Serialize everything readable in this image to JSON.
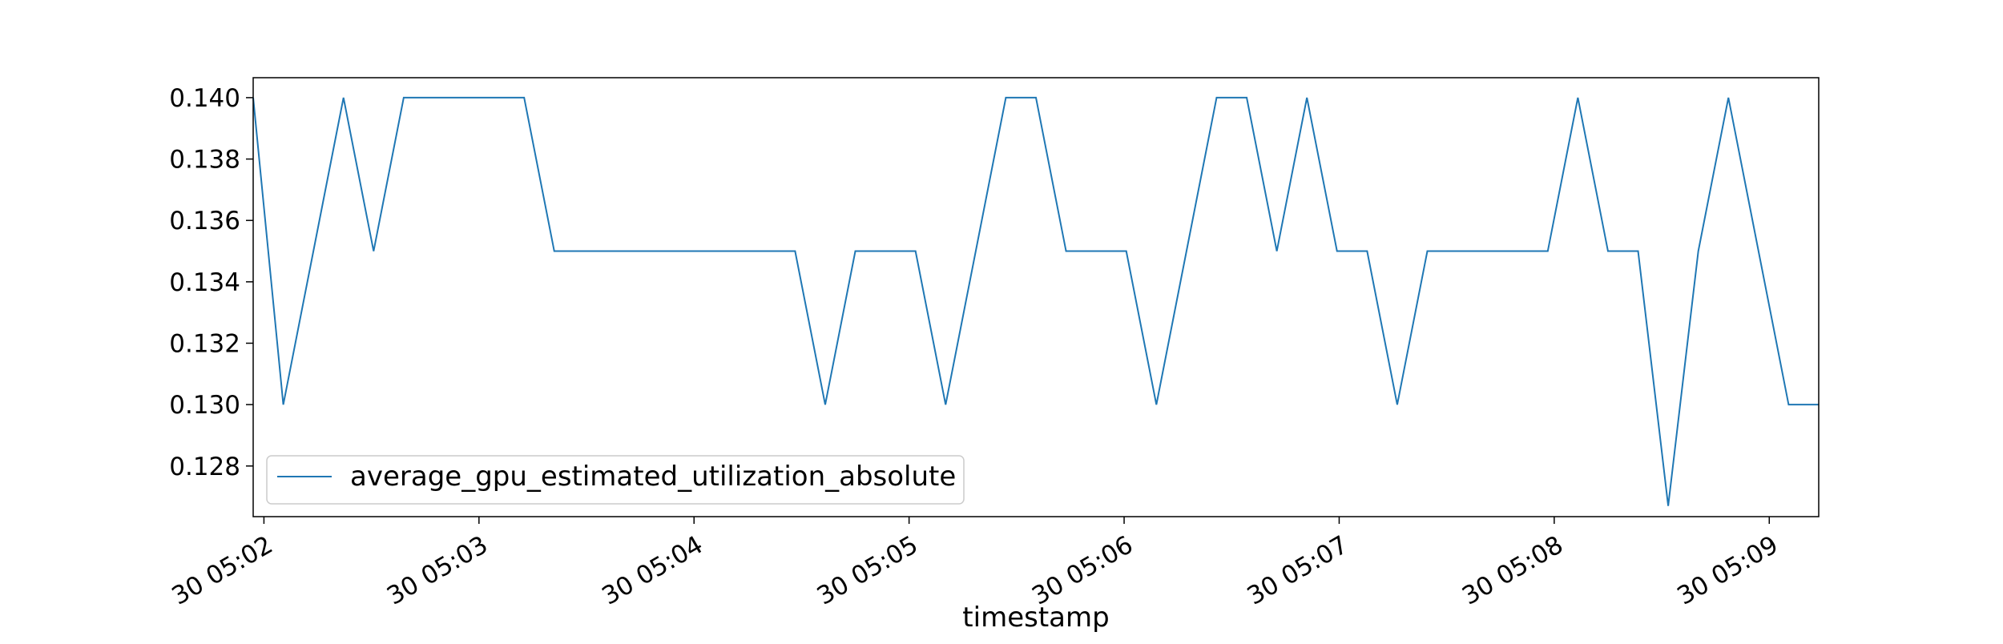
{
  "chart_data": {
    "type": "line",
    "title": "",
    "xlabel": "timestamp",
    "ylabel": "",
    "x_tick_labels": [
      "30 05:02",
      "30 05:03",
      "30 05:04",
      "30 05:05",
      "30 05:06",
      "30 05:07",
      "30 05:08",
      "30 05:09"
    ],
    "y_tick_labels": [
      "0.128",
      "0.130",
      "0.132",
      "0.134",
      "0.136",
      "0.138",
      "0.140"
    ],
    "y_ticks": [
      0.128,
      0.13,
      0.132,
      0.134,
      0.136,
      0.138,
      0.14
    ],
    "xlim_minutes": [
      -0.05,
      7.23
    ],
    "ylim": [
      0.12635,
      0.14065
    ],
    "grid": false,
    "legend_position": "lower-left",
    "series": [
      {
        "name": "average_gpu_estimated_utilization_absolute",
        "color": "#1f77b4",
        "x_minutes": [
          -0.05,
          0.09,
          0.23,
          0.37,
          0.51,
          0.65,
          0.79,
          0.93,
          1.07,
          1.21,
          1.35,
          1.49,
          1.63,
          1.77,
          1.91,
          2.05,
          2.19,
          2.33,
          2.47,
          2.61,
          2.75,
          2.89,
          3.03,
          3.17,
          3.31,
          3.45,
          3.59,
          3.73,
          3.87,
          4.01,
          4.15,
          4.29,
          4.43,
          4.57,
          4.71,
          4.85,
          4.99,
          5.13,
          5.27,
          5.41,
          5.55,
          5.69,
          5.83,
          5.97,
          6.11,
          6.25,
          6.39,
          6.53,
          6.67,
          6.81,
          6.95,
          7.09,
          7.23
        ],
        "values": [
          0.14,
          0.13,
          0.135,
          0.14,
          0.135,
          0.14,
          0.14,
          0.14,
          0.14,
          0.14,
          0.135,
          0.135,
          0.135,
          0.135,
          0.135,
          0.135,
          0.135,
          0.135,
          0.135,
          0.13,
          0.135,
          0.135,
          0.135,
          0.13,
          0.135,
          0.14,
          0.14,
          0.135,
          0.135,
          0.135,
          0.13,
          0.135,
          0.14,
          0.14,
          0.135,
          0.14,
          0.135,
          0.135,
          0.13,
          0.135,
          0.135,
          0.135,
          0.135,
          0.135,
          0.14,
          0.135,
          0.135,
          0.1267,
          0.135,
          0.14,
          0.135,
          0.13,
          0.13
        ]
      }
    ]
  }
}
